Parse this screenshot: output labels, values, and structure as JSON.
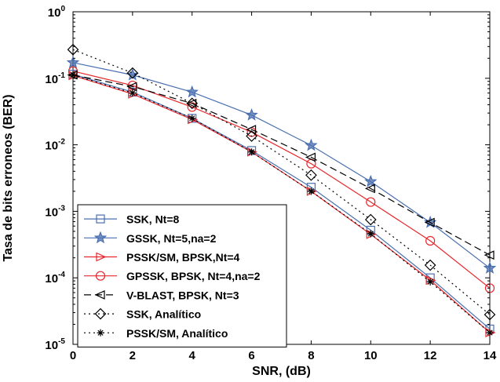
{
  "chart_data": {
    "type": "line",
    "xlabel": "SNR, (dB)",
    "ylabel": "Tasa de bits erroneos (BER)",
    "yscale": "log",
    "xlim": [
      0,
      14
    ],
    "ylim_exponents": [
      -5,
      0
    ],
    "xticks": [
      "0",
      "2",
      "4",
      "6",
      "8",
      "10",
      "12",
      "14"
    ],
    "yticks": [
      {
        "base": "10",
        "exp": "0"
      },
      {
        "base": "10",
        "exp": "-1"
      },
      {
        "base": "10",
        "exp": "-2"
      },
      {
        "base": "10",
        "exp": "-3"
      },
      {
        "base": "10",
        "exp": "-4"
      },
      {
        "base": "10",
        "exp": "-5"
      }
    ],
    "grid": false,
    "legend_position": "bottom-left",
    "x": [
      0,
      2,
      4,
      6,
      8,
      10,
      12,
      14
    ],
    "series": [
      {
        "name": "SSK, Nt=8",
        "color": "#4a6fb0",
        "dash": "solid",
        "marker": "square",
        "values": [
          0.115,
          0.062,
          0.025,
          0.0082,
          0.0023,
          0.00052,
          0.0001,
          1.7e-05
        ]
      },
      {
        "name": "GSSK, Nt=5,na=2",
        "color": "#4a6fb0",
        "dash": "solid",
        "marker": "star",
        "values": [
          0.172,
          0.112,
          0.062,
          0.028,
          0.0098,
          0.0028,
          0.00068,
          0.00014
        ]
      },
      {
        "name": "PSSK/SM, BPSK,Nt=4",
        "color": "#e8262b",
        "dash": "solid",
        "marker": "triangle-right",
        "values": [
          0.11,
          0.058,
          0.024,
          0.0078,
          0.002,
          0.00045,
          9.2e-05,
          1.5e-05
        ]
      },
      {
        "name": "GPSSK, BPSK, Nt=4,na=2",
        "color": "#e8262b",
        "dash": "solid",
        "marker": "circle",
        "values": [
          0.128,
          0.078,
          0.037,
          0.0155,
          0.0052,
          0.00138,
          0.00036,
          7e-05
        ]
      },
      {
        "name": "V-BLAST, BPSK, Nt=3",
        "color": "#000000",
        "dash": "dashed",
        "marker": "triangle-left",
        "values": [
          0.112,
          0.075,
          0.042,
          0.017,
          0.0065,
          0.0022,
          0.00068,
          0.00022
        ]
      },
      {
        "name": "SSK, Analítico",
        "color": "#000000",
        "dash": "dotted",
        "marker": "diamond",
        "values": [
          0.27,
          0.12,
          0.042,
          0.0135,
          0.0035,
          0.00075,
          0.000155,
          2.8e-05
        ]
      },
      {
        "name": "PSSK/SM, Analítico",
        "color": "#000000",
        "dash": "dotted",
        "marker": "asterisk",
        "values": [
          0.112,
          0.06,
          0.025,
          0.0078,
          0.002,
          0.00046,
          8.7e-05,
          1.5e-05
        ]
      }
    ]
  }
}
